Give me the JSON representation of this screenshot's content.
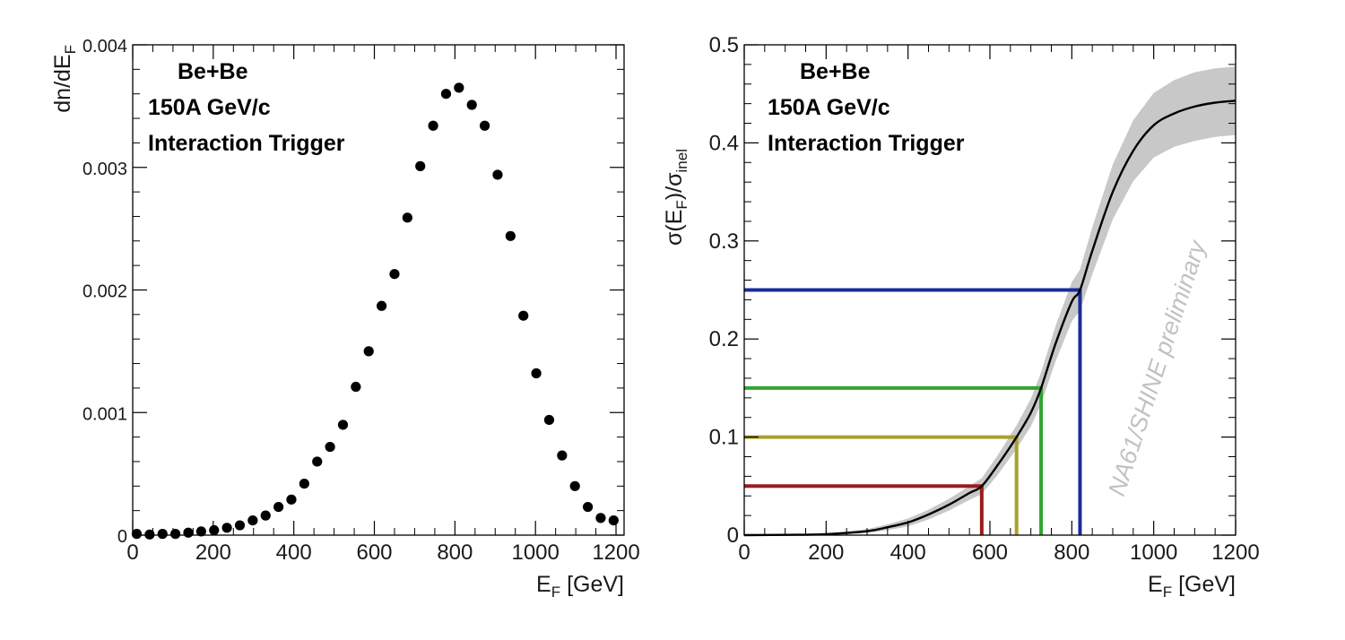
{
  "chart_data": [
    {
      "type": "scatter",
      "xlabel": "E",
      "xlabel_sub": "F",
      "xlabel_unit": " [GeV]",
      "ylabel": "dn/dE",
      "ylabel_sub": "F",
      "xlim": [
        0,
        1220
      ],
      "ylim": [
        0,
        0.004
      ],
      "xticks": [
        "0",
        "200",
        "400",
        "600",
        "800",
        "1000",
        "1200"
      ],
      "yticks": [
        "0",
        "0.001",
        "0.002",
        "0.003",
        "0.004"
      ],
      "annotation": [
        "Be+Be",
        "150A GeV/c",
        "Interaction Trigger"
      ],
      "marker_color": "#000000",
      "x": [
        10,
        42,
        74,
        106,
        138,
        170,
        202,
        234,
        266,
        298,
        330,
        362,
        394,
        426,
        458,
        490,
        522,
        554,
        586,
        618,
        650,
        682,
        714,
        746,
        778,
        810,
        842,
        874,
        906,
        938,
        970,
        1002,
        1034,
        1066,
        1098,
        1130,
        1162,
        1194
      ],
      "y": [
        1e-05,
        5e-06,
        1e-05,
        1e-05,
        2e-05,
        3e-05,
        4e-05,
        6e-05,
        8e-05,
        0.00012,
        0.00016,
        0.00023,
        0.00029,
        0.00042,
        0.0006,
        0.00072,
        0.0009,
        0.00121,
        0.0015,
        0.00187,
        0.00213,
        0.00259,
        0.00301,
        0.00334,
        0.0036,
        0.00365,
        0.00351,
        0.00334,
        0.00294,
        0.00244,
        0.00179,
        0.00132,
        0.00094,
        0.00065,
        0.0004,
        0.00023,
        0.00014,
        0.00012
      ]
    },
    {
      "type": "line",
      "xlabel": "E",
      "xlabel_sub": "F",
      "xlabel_unit": " [GeV]",
      "ylabel_parts": [
        "σ(E",
        "F",
        ")/σ",
        "inel"
      ],
      "xlim": [
        0,
        1200
      ],
      "ylim": [
        0,
        0.5
      ],
      "xticks": [
        "0",
        "200",
        "400",
        "600",
        "800",
        "1000",
        "1200"
      ],
      "yticks": [
        "0",
        "0.1",
        "0.2",
        "0.3",
        "0.4",
        "0.5"
      ],
      "annotation": [
        "Be+Be",
        "150A GeV/c",
        "Interaction Trigger"
      ],
      "watermark": "NA61/SHINE preliminary",
      "curve": {
        "x": [
          0,
          100,
          200,
          300,
          350,
          400,
          450,
          500,
          550,
          580,
          620,
          665,
          700,
          725,
          760,
          800,
          820,
          850,
          900,
          950,
          1000,
          1050,
          1100,
          1150,
          1200
        ],
        "y": [
          0,
          0.0003,
          0.001,
          0.004,
          0.008,
          0.013,
          0.021,
          0.031,
          0.043,
          0.05,
          0.072,
          0.1,
          0.125,
          0.15,
          0.195,
          0.238,
          0.25,
          0.29,
          0.35,
          0.392,
          0.418,
          0.43,
          0.437,
          0.441,
          0.443
        ],
        "band_halfwidth": [
          0,
          0.0002,
          0.0008,
          0.002,
          0.003,
          0.004,
          0.005,
          0.006,
          0.007,
          0.008,
          0.01,
          0.012,
          0.014,
          0.016,
          0.018,
          0.02,
          0.021,
          0.024,
          0.028,
          0.031,
          0.033,
          0.034,
          0.035,
          0.035,
          0.035
        ],
        "line_color": "#000000",
        "band_color": "#c8c8c8"
      },
      "cuts": [
        {
          "y": 0.05,
          "x": 580,
          "color": "#9b1b1b"
        },
        {
          "y": 0.1,
          "x": 665,
          "color": "#a8a12a"
        },
        {
          "y": 0.15,
          "x": 725,
          "color": "#2fa62f"
        },
        {
          "y": 0.25,
          "x": 820,
          "color": "#1a2b9c"
        }
      ]
    }
  ]
}
